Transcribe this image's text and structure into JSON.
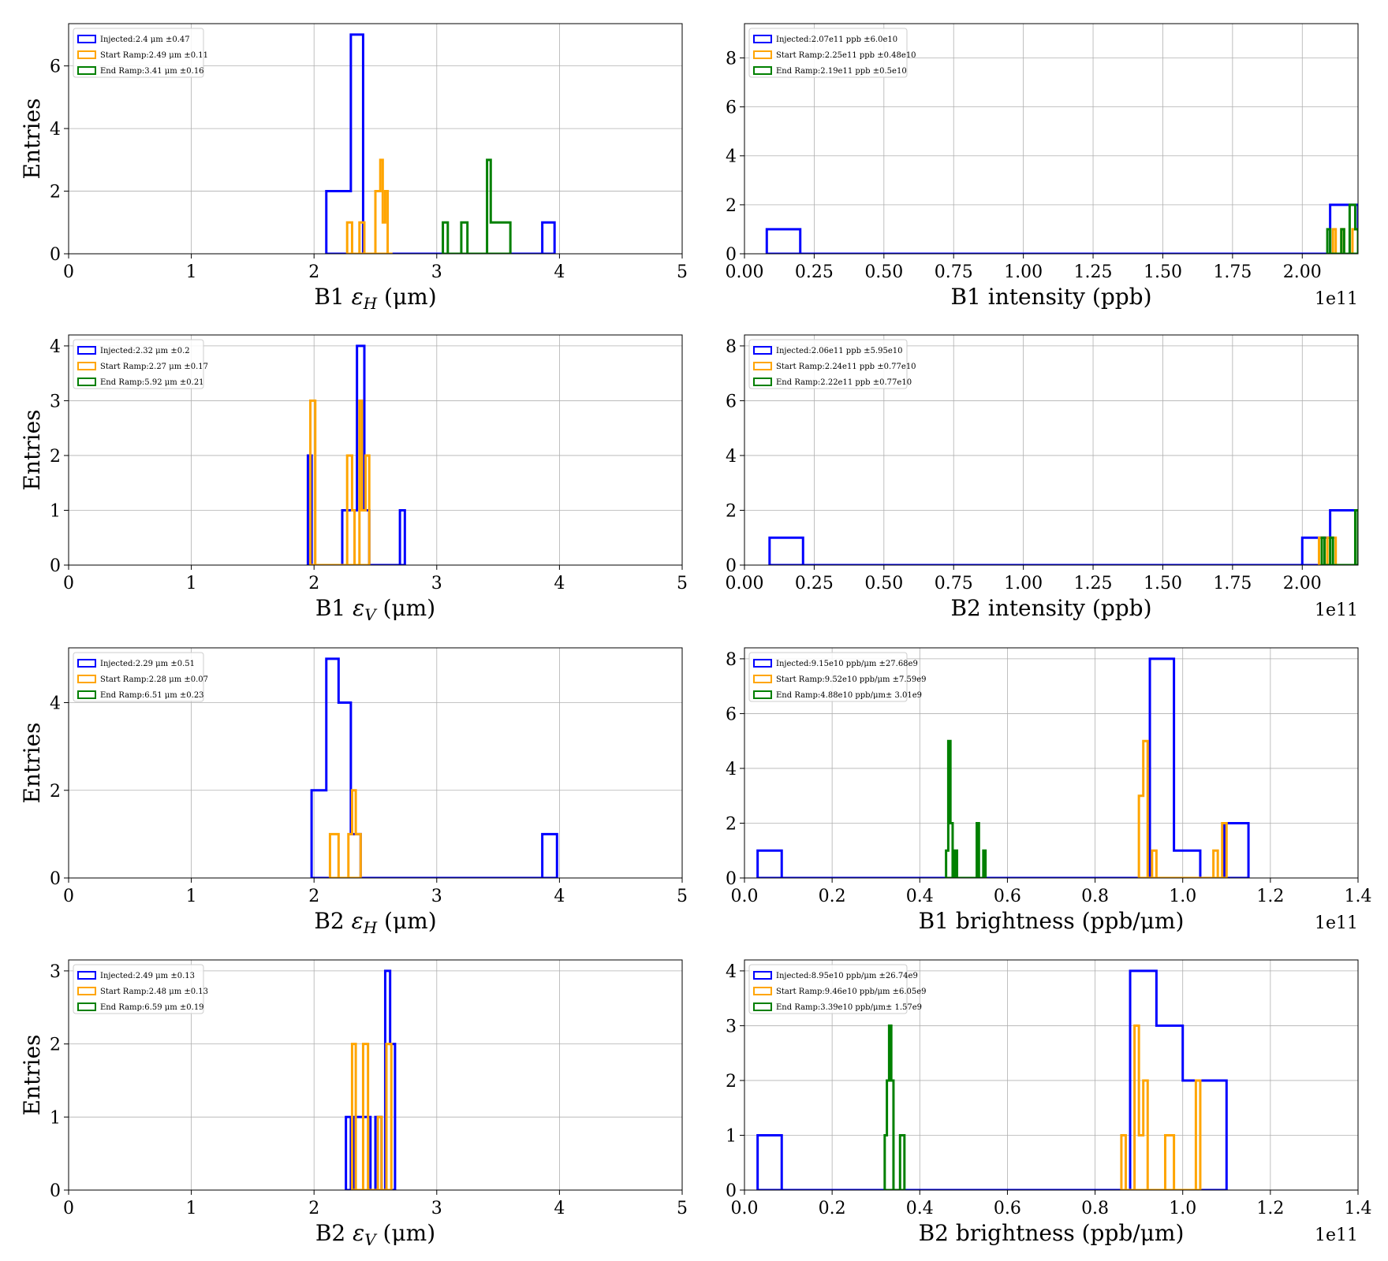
{
  "colors": {
    "injected": "#0000ff",
    "start": "#ffa500",
    "end": "#008000",
    "grid": "#b0b0b0"
  },
  "chart_data": [
    {
      "type": "histogram",
      "xlabel": "B1 εH (μm)",
      "ylabel": "Entries",
      "xlim": [
        0,
        5
      ],
      "ylim": [
        0,
        7.35
      ],
      "xticks": [
        0,
        1,
        2,
        3,
        4,
        5
      ],
      "xticklabels": [
        "0",
        "1",
        "2",
        "3",
        "4",
        "5"
      ],
      "yticks": [
        0,
        2,
        4,
        6
      ],
      "yticklabels": [
        "0",
        "2",
        "4",
        "6"
      ],
      "legend": [
        "Injected:2.4 μm ±0.47",
        "Start Ramp:2.49 μm ±0.11",
        "End Ramp:3.41 μm ±0.16"
      ],
      "series": [
        {
          "name": "Injected",
          "edges": [
            2.1,
            2.3,
            2.4,
            3.86,
            3.96
          ],
          "counts": [
            2,
            7,
            0,
            1
          ]
        },
        {
          "name": "Start Ramp",
          "edges": [
            2.27,
            2.31,
            2.37,
            2.41,
            2.5,
            2.52,
            2.54,
            2.56,
            2.58,
            2.6,
            2.64
          ],
          "counts": [
            1,
            0,
            1,
            0,
            2,
            2,
            3,
            1,
            2,
            0
          ]
        },
        {
          "name": "End Ramp",
          "edges": [
            3.05,
            3.09,
            3.2,
            3.25,
            3.41,
            3.44,
            3.6
          ],
          "counts": [
            1,
            0,
            1,
            0,
            3,
            1
          ]
        }
      ]
    },
    {
      "type": "histogram",
      "xlabel": "B1 intensity (ppb)",
      "ylabel": "",
      "xlim": [
        0,
        2.2
      ],
      "ylim": [
        0,
        9.4
      ],
      "xticks": [
        0,
        0.25,
        0.5,
        0.75,
        1.0,
        1.25,
        1.5,
        1.75,
        2.0
      ],
      "xticklabels": [
        "0.00",
        "0.25",
        "0.50",
        "0.75",
        "1.00",
        "1.25",
        "1.50",
        "1.75",
        "2.00"
      ],
      "yticks": [
        0,
        2,
        4,
        6,
        8
      ],
      "yticklabels": [
        "0",
        "2",
        "4",
        "6",
        "8"
      ],
      "offset_text": "1e11",
      "legend": [
        "Injected:2.07e11 ppb ±6.0e10",
        "Start Ramp:2.25e11 ppb ±0.48e10",
        "End Ramp:2.19e11 ppb ±0.5e10"
      ],
      "series": [
        {
          "name": "Injected",
          "edges": [
            0.08,
            0.2,
            2.1,
            2.2
          ],
          "counts": [
            1,
            0,
            2
          ]
        },
        {
          "name": "Start Ramp",
          "edges": [
            2.11,
            2.12,
            2.14,
            2.15,
            2.18,
            2.2
          ],
          "counts": [
            1,
            0,
            1,
            0,
            1
          ]
        },
        {
          "name": "End Ramp",
          "edges": [
            2.09,
            2.1,
            2.14,
            2.15,
            2.17,
            2.19,
            2.2
          ],
          "counts": [
            1,
            0,
            1,
            0,
            2,
            1
          ]
        }
      ]
    },
    {
      "type": "histogram",
      "xlabel": "B1 εV (μm)",
      "ylabel": "Entries",
      "xlim": [
        0,
        5
      ],
      "ylim": [
        0,
        4.2
      ],
      "xticks": [
        0,
        1,
        2,
        3,
        4,
        5
      ],
      "xticklabels": [
        "0",
        "1",
        "2",
        "3",
        "4",
        "5"
      ],
      "yticks": [
        0,
        1,
        2,
        3,
        4
      ],
      "yticklabels": [
        "0",
        "1",
        "2",
        "3",
        "4"
      ],
      "legend": [
        "Injected:2.32 μm ±0.2",
        "Start Ramp:2.27 μm ±0.17",
        "End Ramp:5.92 μm ±0.21"
      ],
      "series": [
        {
          "name": "Injected",
          "edges": [
            1.95,
            1.98,
            2.23,
            2.35,
            2.41,
            2.45,
            2.7,
            2.74
          ],
          "counts": [
            2,
            0,
            1,
            4,
            1,
            0,
            1
          ]
        },
        {
          "name": "Start Ramp",
          "edges": [
            1.97,
            2.01,
            2.27,
            2.31,
            2.33,
            2.37,
            2.39,
            2.42,
            2.45
          ],
          "counts": [
            3,
            0,
            2,
            1,
            0,
            3,
            1,
            2
          ]
        },
        {
          "name": "End Ramp",
          "edges": [],
          "counts": []
        }
      ]
    },
    {
      "type": "histogram",
      "xlabel": "B2 intensity (ppb)",
      "ylabel": "",
      "xlim": [
        0,
        2.2
      ],
      "ylim": [
        0,
        8.4
      ],
      "xticks": [
        0,
        0.25,
        0.5,
        0.75,
        1.0,
        1.25,
        1.5,
        1.75,
        2.0
      ],
      "xticklabels": [
        "0.00",
        "0.25",
        "0.50",
        "0.75",
        "1.00",
        "1.25",
        "1.50",
        "1.75",
        "2.00"
      ],
      "yticks": [
        0,
        2,
        4,
        6,
        8
      ],
      "yticklabels": [
        "0",
        "2",
        "4",
        "6",
        "8"
      ],
      "offset_text": "1e11",
      "legend": [
        "Injected:2.06e11 ppb ±5.95e10",
        "Start Ramp:2.24e11 ppb ±0.77e10",
        "End Ramp:2.22e11 ppb ±0.77e10"
      ],
      "series": [
        {
          "name": "Injected",
          "edges": [
            0.09,
            0.21,
            2.0,
            2.1,
            2.2
          ],
          "counts": [
            1,
            0,
            1,
            2
          ]
        },
        {
          "name": "Start Ramp",
          "edges": [
            2.06,
            2.08,
            2.09,
            2.12,
            2.14
          ],
          "counts": [
            1,
            0,
            1,
            0
          ]
        },
        {
          "name": "End Ramp",
          "edges": [
            2.07,
            2.08,
            2.1,
            2.11,
            2.19,
            2.2
          ],
          "counts": [
            1,
            0,
            1,
            0,
            2
          ]
        }
      ]
    },
    {
      "type": "histogram",
      "xlabel": "B2 εH (μm)",
      "ylabel": "Entries",
      "xlim": [
        0,
        5
      ],
      "ylim": [
        0,
        5.25
      ],
      "xticks": [
        0,
        1,
        2,
        3,
        4,
        5
      ],
      "xticklabels": [
        "0",
        "1",
        "2",
        "3",
        "4",
        "5"
      ],
      "yticks": [
        0,
        2,
        4
      ],
      "yticklabels": [
        "0",
        "2",
        "4"
      ],
      "legend": [
        "Injected:2.29 μm ±0.51",
        "Start Ramp:2.28 μm ±0.07",
        "End Ramp:6.51 μm ±0.23"
      ],
      "series": [
        {
          "name": "Injected",
          "edges": [
            1.98,
            2.1,
            2.2,
            2.3,
            2.38,
            3.86,
            3.98
          ],
          "counts": [
            2,
            5,
            4,
            1,
            0,
            1
          ]
        },
        {
          "name": "Start Ramp",
          "edges": [
            2.13,
            2.17,
            2.2,
            2.28,
            2.31,
            2.34,
            2.36,
            2.38
          ],
          "counts": [
            1,
            1,
            0,
            1,
            2,
            1,
            1
          ]
        },
        {
          "name": "End Ramp",
          "edges": [],
          "counts": []
        }
      ]
    },
    {
      "type": "histogram",
      "xlabel": "B1 brightness (ppb/μm)",
      "ylabel": "",
      "xlim": [
        0,
        1.4
      ],
      "ylim": [
        0,
        8.4
      ],
      "xticks": [
        0,
        0.2,
        0.4,
        0.6,
        0.8,
        1.0,
        1.2,
        1.4
      ],
      "xticklabels": [
        "0.0",
        "0.2",
        "0.4",
        "0.6",
        "0.8",
        "1.0",
        "1.2",
        "1.4"
      ],
      "yticks": [
        0,
        2,
        4,
        6,
        8
      ],
      "yticklabels": [
        "0",
        "2",
        "4",
        "6",
        "8"
      ],
      "offset_text": "1e11",
      "legend": [
        "Injected:9.15e10 ppb/μm ±27.68e9",
        "Start Ramp:9.52e10 ppb/μm ±7.59e9",
        "End Ramp:4.88e10 ppb/μm± 3.01e9"
      ],
      "series": [
        {
          "name": "Injected",
          "edges": [
            0.03,
            0.085,
            0.925,
            0.98,
            1.04,
            1.095,
            1.15
          ],
          "counts": [
            1,
            0,
            8,
            1,
            0,
            2
          ]
        },
        {
          "name": "Start Ramp",
          "edges": [
            0.9,
            0.91,
            0.92,
            0.93,
            0.94,
            1.07,
            1.08,
            1.09,
            1.1
          ],
          "counts": [
            3,
            5,
            0,
            1,
            0,
            1,
            0,
            2
          ]
        },
        {
          "name": "End Ramp",
          "edges": [
            0.46,
            0.465,
            0.47,
            0.475,
            0.48,
            0.485,
            0.53,
            0.535,
            0.545,
            0.55
          ],
          "counts": [
            1,
            5,
            2,
            0,
            1,
            0,
            2,
            0,
            1
          ]
        }
      ]
    },
    {
      "type": "histogram",
      "xlabel": "B2 εV (μm)",
      "ylabel": "Entries",
      "xlim": [
        0,
        5
      ],
      "ylim": [
        0,
        3.15
      ],
      "xticks": [
        0,
        1,
        2,
        3,
        4,
        5
      ],
      "xticklabels": [
        "0",
        "1",
        "2",
        "3",
        "4",
        "5"
      ],
      "yticks": [
        0,
        1,
        2,
        3
      ],
      "yticklabels": [
        "0",
        "1",
        "2",
        "3"
      ],
      "legend": [
        "Injected:2.49 μm ±0.13",
        "Start Ramp:2.48 μm ±0.13",
        "End Ramp:6.59 μm ±0.19"
      ],
      "series": [
        {
          "name": "Injected",
          "edges": [
            2.26,
            2.3,
            2.32,
            2.46,
            2.5,
            2.55,
            2.58,
            2.62,
            2.66
          ],
          "counts": [
            1,
            0,
            1,
            0,
            1,
            0,
            3,
            2
          ]
        },
        {
          "name": "Start Ramp",
          "edges": [
            2.31,
            2.34,
            2.4,
            2.44,
            2.52,
            2.55,
            2.59,
            2.63
          ],
          "counts": [
            2,
            0,
            2,
            0,
            1,
            0,
            2
          ]
        },
        {
          "name": "End Ramp",
          "edges": [],
          "counts": []
        }
      ]
    },
    {
      "type": "histogram",
      "xlabel": "B2 brightness (ppb/μm)",
      "ylabel": "",
      "xlim": [
        0,
        1.4
      ],
      "ylim": [
        0,
        4.2
      ],
      "xticks": [
        0,
        0.2,
        0.4,
        0.6,
        0.8,
        1.0,
        1.2,
        1.4
      ],
      "xticklabels": [
        "0.0",
        "0.2",
        "0.4",
        "0.6",
        "0.8",
        "1.0",
        "1.2",
        "1.4"
      ],
      "yticks": [
        0,
        1,
        2,
        3,
        4
      ],
      "yticklabels": [
        "0",
        "1",
        "2",
        "3",
        "4"
      ],
      "offset_text": "1e11",
      "legend": [
        "Injected:8.95e10 ppb/μm ±26.74e9",
        "Start Ramp:9.46e10 ppb/μm ±6.05e9",
        "End Ramp:3.39e10 ppb/μm± 1.57e9"
      ],
      "series": [
        {
          "name": "Injected",
          "edges": [
            0.03,
            0.085,
            0.88,
            0.94,
            1.0,
            1.1
          ],
          "counts": [
            1,
            0,
            4,
            3,
            2
          ]
        },
        {
          "name": "Start Ramp",
          "edges": [
            0.86,
            0.87,
            0.89,
            0.9,
            0.91,
            0.92,
            0.96,
            0.98,
            1.03,
            1.04
          ],
          "counts": [
            1,
            0,
            3,
            1,
            2,
            0,
            1,
            0,
            2
          ]
        },
        {
          "name": "End Ramp",
          "edges": [
            0.32,
            0.325,
            0.33,
            0.335,
            0.34,
            0.355,
            0.365
          ],
          "counts": [
            1,
            2,
            3,
            2,
            0,
            1
          ]
        }
      ]
    }
  ]
}
